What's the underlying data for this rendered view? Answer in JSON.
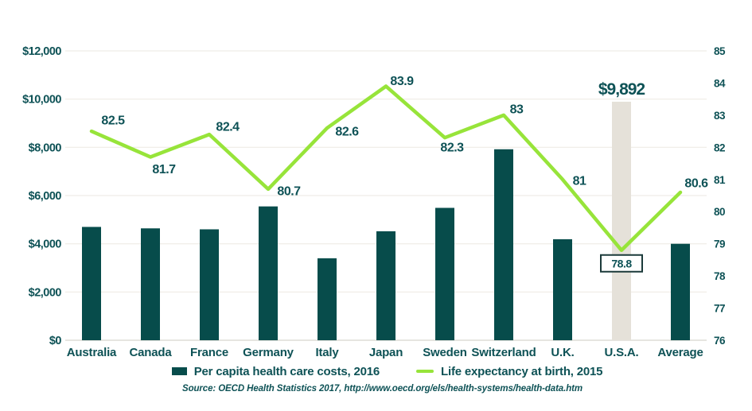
{
  "colors": {
    "background": "#ffffff",
    "bar": "#074c4b",
    "bar_highlight": "#e5e1d9",
    "line": "#97e43a",
    "text": "#0e5256",
    "grid": "#efece6",
    "baseline": "#d8d5ce",
    "callout_box_border": "#1b3a3a",
    "callout_box_fill": "#ffffff"
  },
  "chart_data": {
    "type": "bar+line combo",
    "title": "",
    "categories": [
      "Australia",
      "Canada",
      "France",
      "Germany",
      "Italy",
      "Japan",
      "Sweden",
      "Switzerland",
      "U.K.",
      "U.S.A.",
      "Average"
    ],
    "series": [
      {
        "name": "Per capita health care costs, 2016",
        "type": "bar",
        "axis": "left",
        "values": [
          4700,
          4640,
          4600,
          5550,
          3400,
          4520,
          5490,
          7920,
          4190,
          9892,
          4000
        ]
      },
      {
        "name": "Life expectancy at birth, 2015",
        "type": "line",
        "axis": "right",
        "values": [
          82.5,
          81.7,
          82.4,
          80.7,
          82.6,
          83.9,
          82.3,
          83,
          81,
          78.8,
          80.6
        ]
      }
    ],
    "line_point_labels": [
      "82.5",
      "81.7",
      "82.4",
      "80.7",
      "82.6",
      "83.9",
      "82.3",
      "83",
      "81",
      "78.8",
      "80.6"
    ],
    "left_axis": {
      "min": 0,
      "max": 12000,
      "tick_labels": [
        "$0",
        "$2,000",
        "$4,000",
        "$6,000",
        "$8,000",
        "$10,000",
        "$12,000"
      ]
    },
    "right_axis": {
      "min": 76,
      "max": 85,
      "tick_labels": [
        "76",
        "77",
        "78",
        "79",
        "80",
        "81",
        "82",
        "83",
        "84",
        "85"
      ]
    },
    "grid": "horizontal gridlines on",
    "legend_position": "bottom",
    "highlight": {
      "category": "U.S.A.",
      "bar_value_label": "$9,892",
      "line_value_label": "78.8",
      "line_label_boxed": true
    }
  },
  "legend": {
    "items": [
      {
        "label": "Per capita health care costs, 2016",
        "swatch": "bar-swatch"
      },
      {
        "label": "Life expectancy at birth, 2015",
        "swatch": "line-swatch"
      }
    ]
  },
  "source": {
    "text": "Source: OECD Health Statistics 2017, http://www.oecd.org/els/health-systems/health-data.htm"
  }
}
